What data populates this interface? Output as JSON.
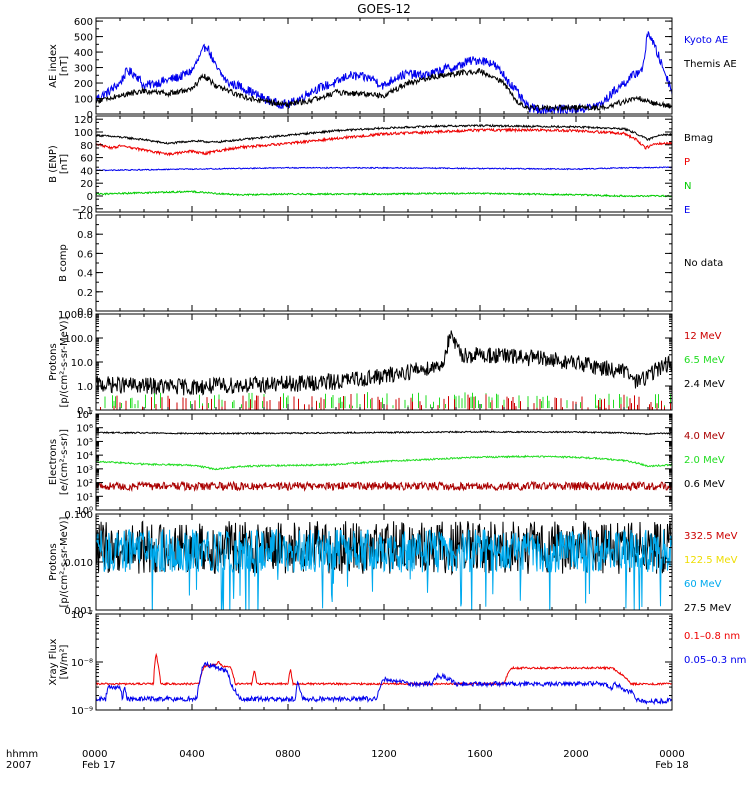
{
  "title": "GOES-12",
  "time_axis": {
    "row1_label": "hhmm",
    "row2_label": "2007",
    "ticks": [
      {
        "t": 0,
        "label": "0000",
        "sub": "Feb 17"
      },
      {
        "t": 4,
        "label": "0400",
        "sub": ""
      },
      {
        "t": 8,
        "label": "0800",
        "sub": ""
      },
      {
        "t": 12,
        "label": "1200",
        "sub": ""
      },
      {
        "t": 16,
        "label": "1600",
        "sub": ""
      },
      {
        "t": 20,
        "label": "2000",
        "sub": ""
      },
      {
        "t": 24,
        "label": "0000",
        "sub": "Feb 18"
      }
    ],
    "range_hours": [
      0,
      24
    ]
  },
  "chart_data": [
    {
      "type": "line",
      "ylabel": [
        "AE index",
        "[nT]"
      ],
      "ylim": [
        0,
        620
      ],
      "yticks": [
        0,
        100,
        200,
        300,
        400,
        500,
        600
      ],
      "ytick_labels": [
        "0",
        "100",
        "200",
        "300",
        "400",
        "500",
        "600"
      ],
      "legend": [
        {
          "label": "Kyoto AE",
          "color": "#0000ee"
        },
        {
          "label": "Themis AE",
          "color": "#000000"
        }
      ],
      "series": [
        {
          "name": "Kyoto AE",
          "color": "#0000ee",
          "noise": 30,
          "x": [
            0,
            0.5,
            1,
            1.3,
            1.7,
            2,
            2.5,
            3,
            3.5,
            4,
            4.3,
            4.6,
            5,
            5.5,
            6,
            6.5,
            7,
            7.5,
            8,
            8.5,
            9,
            9.5,
            10,
            10.5,
            11,
            11.5,
            12,
            12.5,
            13,
            13.5,
            14,
            14.5,
            15,
            15.5,
            16,
            16.5,
            17,
            17.5,
            18,
            18.5,
            19,
            19.5,
            20,
            20.5,
            21,
            21.3,
            21.6,
            22,
            22.4,
            22.8,
            23,
            23.5,
            24
          ],
          "y": [
            100,
            140,
            200,
            280,
            250,
            180,
            200,
            220,
            240,
            280,
            360,
            450,
            300,
            200,
            180,
            140,
            100,
            70,
            60,
            100,
            150,
            180,
            200,
            250,
            240,
            230,
            180,
            240,
            260,
            250,
            260,
            290,
            300,
            340,
            350,
            330,
            250,
            150,
            40,
            30,
            30,
            30,
            30,
            40,
            60,
            100,
            150,
            200,
            250,
            300,
            540,
            350,
            150
          ]
        },
        {
          "name": "Themis AE",
          "color": "#000000",
          "noise": 18,
          "x": [
            0,
            1,
            2,
            3,
            4,
            4.5,
            5,
            6,
            7,
            8,
            9,
            10,
            11,
            12,
            13,
            14,
            15,
            16,
            17,
            17.5,
            18,
            19,
            20,
            21,
            22,
            22.5,
            23,
            23.5,
            24
          ],
          "y": [
            80,
            120,
            150,
            130,
            160,
            250,
            180,
            120,
            80,
            60,
            90,
            140,
            130,
            120,
            200,
            240,
            260,
            280,
            200,
            80,
            40,
            40,
            40,
            40,
            80,
            110,
            80,
            60,
            50
          ]
        }
      ]
    },
    {
      "type": "line",
      "ylabel": [
        "B (ENP)",
        "[nT]"
      ],
      "ylim": [
        -25,
        125
      ],
      "yticks": [
        -20,
        0,
        20,
        40,
        60,
        80,
        100,
        120
      ],
      "ytick_labels": [
        "−20",
        "0",
        "20",
        "40",
        "60",
        "80",
        "100",
        "120"
      ],
      "legend": [
        {
          "label": "Bmag",
          "color": "#000000"
        },
        {
          "label": "P",
          "color": "#ee0000"
        },
        {
          "label": "N",
          "color": "#00cc00"
        },
        {
          "label": "E",
          "color": "#0000ee"
        }
      ],
      "series": [
        {
          "name": "Bmag",
          "color": "#000000",
          "noise": 1.5,
          "x": [
            0,
            1,
            2,
            3,
            4,
            5,
            6,
            8,
            10,
            12,
            14,
            16,
            18,
            20,
            22,
            22.5,
            23,
            23.5,
            24
          ],
          "y": [
            95,
            92,
            88,
            82,
            86,
            84,
            88,
            95,
            102,
            106,
            109,
            110,
            109,
            108,
            105,
            98,
            88,
            96,
            96
          ]
        },
        {
          "name": "P",
          "color": "#ee0000",
          "noise": 2,
          "x": [
            0,
            0.6,
            1,
            2,
            3,
            4,
            4.5,
            5,
            6,
            8,
            10,
            12,
            14,
            16,
            18,
            20,
            22,
            22.5,
            22.9,
            23.3,
            24
          ],
          "y": [
            82,
            75,
            78,
            72,
            65,
            70,
            66,
            70,
            76,
            82,
            90,
            97,
            100,
            103,
            103,
            102,
            98,
            88,
            75,
            82,
            82
          ]
        },
        {
          "name": "N",
          "color": "#00cc00",
          "noise": 1.2,
          "x": [
            0,
            2,
            4,
            5,
            6,
            8,
            10,
            12,
            14,
            16,
            18,
            20,
            22,
            24
          ],
          "y": [
            3,
            5,
            7,
            4,
            2,
            3,
            3,
            3,
            4,
            4,
            3,
            2,
            0,
            0
          ]
        },
        {
          "name": "E",
          "color": "#0000ee",
          "noise": 0.8,
          "x": [
            0,
            4,
            8,
            12,
            16,
            20,
            22,
            24
          ],
          "y": [
            40,
            42,
            44,
            44,
            43,
            42,
            44,
            45
          ]
        }
      ]
    },
    {
      "type": "line",
      "ylabel": [
        "B comp"
      ],
      "ylim": [
        0,
        1
      ],
      "yticks": [
        0,
        0.2,
        0.4,
        0.6,
        0.8,
        1.0
      ],
      "ytick_labels": [
        "0.0",
        "0.2",
        "0.4",
        "0.6",
        "0.8",
        "1.0"
      ],
      "minor_step": 0.1,
      "legend": [
        {
          "label": "No data",
          "color": "#000000"
        }
      ],
      "series": []
    },
    {
      "type": "line",
      "log": true,
      "ylabel": [
        "Protons",
        "[p/(cm²-s-sr-MeV)]"
      ],
      "ylim": [
        0.1,
        1000
      ],
      "yticks": [
        0.1,
        1,
        10,
        100,
        1000
      ],
      "ytick_labels": [
        "0.1",
        "1.0",
        "10.0",
        "100.0",
        "1000.0"
      ],
      "legend": [
        {
          "label": "12 MeV",
          "color": "#cc0000"
        },
        {
          "label": "6.5 MeV",
          "color": "#22dd22"
        },
        {
          "label": "2.4 MeV",
          "color": "#000000"
        }
      ],
      "series": [
        {
          "name": "2.4 MeV",
          "color": "#000000",
          "noise": 0.35,
          "x": [
            0,
            2,
            4,
            6,
            8,
            10,
            12,
            13,
            14,
            14.5,
            14.8,
            15.1,
            15.5,
            16,
            18,
            20,
            21,
            22,
            22.5,
            23,
            23.5,
            24
          ],
          "y": [
            1.2,
            1,
            0.9,
            1.1,
            1.2,
            1.5,
            2.5,
            4,
            6,
            9,
            100,
            25,
            18,
            20,
            15,
            9,
            6,
            4,
            1.5,
            2.5,
            6,
            9
          ]
        },
        {
          "name": "6.5 MeV",
          "color": "#22dd22",
          "spiky": true,
          "noise": 0,
          "x": [
            0,
            24
          ],
          "y": [
            0.12,
            0.12
          ]
        },
        {
          "name": "12 MeV",
          "color": "#cc0000",
          "spiky": true,
          "noise": 0,
          "x": [
            0,
            24
          ],
          "y": [
            0.1,
            0.1
          ]
        }
      ]
    },
    {
      "type": "line",
      "log": true,
      "ylabel": [
        "Electrons",
        "[e/(cm²-s-sr)]"
      ],
      "ylim": [
        1,
        10000000
      ],
      "yticks": [
        1,
        10,
        100,
        1000,
        10000,
        100000,
        1000000,
        10000000
      ],
      "ytick_labels": [
        "10⁰",
        "10¹",
        "10²",
        "10³",
        "10⁴",
        "10⁵",
        "10⁶",
        "10⁷"
      ],
      "legend": [
        {
          "label": "4.0 MeV",
          "color": "#aa0000"
        },
        {
          "label": "2.0 MeV",
          "color": "#22dd22"
        },
        {
          "label": "0.6 MeV",
          "color": "#000000"
        }
      ],
      "series": [
        {
          "name": "0.6 MeV",
          "color": "#000000",
          "noise": 0.05,
          "x": [
            0,
            4,
            8,
            12,
            16,
            20,
            22,
            23,
            24
          ],
          "y": [
            450000,
            380000,
            400000,
            450000,
            500000,
            480000,
            420000,
            350000,
            400000
          ]
        },
        {
          "name": "2.0 MeV",
          "color": "#22dd22",
          "noise": 0.06,
          "x": [
            0,
            1,
            2,
            4,
            5,
            6,
            8,
            10,
            12,
            14,
            16,
            18,
            20,
            22,
            23,
            24
          ],
          "y": [
            3500,
            2800,
            2200,
            1800,
            900,
            1500,
            1800,
            2000,
            3500,
            5000,
            7000,
            8000,
            7000,
            4000,
            1500,
            2000
          ]
        },
        {
          "name": "4.0 MeV",
          "color": "#aa0000",
          "noise": 0.3,
          "x": [
            0,
            24
          ],
          "y": [
            55,
            55
          ]
        }
      ]
    },
    {
      "type": "line",
      "log": true,
      "ylabel": [
        "Protons",
        "[p/(cm²-s-sr-MeV)]"
      ],
      "ylim": [
        0.001,
        0.1
      ],
      "yticks": [
        0.001,
        0.01,
        0.1
      ],
      "ytick_labels": [
        "0.001",
        "0.010",
        "0.100"
      ],
      "legend": [
        {
          "label": "332.5 MeV",
          "color": "#cc0000"
        },
        {
          "label": "122.5 MeV",
          "color": "#eedd00"
        },
        {
          "label": "60 MeV",
          "color": "#00aaee"
        },
        {
          "label": "27.5 MeV",
          "color": "#000000"
        }
      ],
      "series": [
        {
          "name": "27.5 MeV",
          "color": "#000000",
          "noise": 0.55,
          "x": [
            0,
            24
          ],
          "y": [
            0.02,
            0.02
          ]
        },
        {
          "name": "60 MeV",
          "color": "#00aaee",
          "noise": 0.45,
          "dips": true,
          "x": [
            0,
            24
          ],
          "y": [
            0.017,
            0.017
          ]
        }
      ]
    },
    {
      "type": "line",
      "log": true,
      "ylabel": [
        "Xray Flux",
        "[W/m²]"
      ],
      "ylim": [
        1e-09,
        1e-07
      ],
      "yticks": [
        1e-09,
        1e-08,
        1e-07
      ],
      "ytick_labels": [
        "10⁻⁹",
        "10⁻⁸",
        "10⁻⁷"
      ],
      "legend": [
        {
          "label": "0.1–0.8 nm",
          "color": "#ee0000"
        },
        {
          "label": "0.05–0.3 nm",
          "color": "#0000ee"
        }
      ],
      "series": [
        {
          "name": "0.1–0.8 nm",
          "color": "#ee0000",
          "noise": 0.02,
          "x": [
            0,
            2.4,
            2.5,
            2.6,
            2.7,
            3,
            4.3,
            4.5,
            5,
            5.1,
            5.3,
            5.6,
            5.8,
            6.5,
            6.6,
            6.7,
            8,
            8.1,
            8.2,
            8.3,
            12,
            17,
            17.3,
            18,
            20,
            21.5,
            22.3,
            24
          ],
          "y": [
            3.5e-09,
            3.5e-09,
            1.5e-08,
            8e-09,
            3.5e-09,
            3.5e-09,
            3.5e-09,
            8e-09,
            9e-09,
            1e-08,
            8e-09,
            8e-09,
            3.5e-09,
            3.5e-09,
            7e-09,
            3.5e-09,
            3.5e-09,
            7e-09,
            3.5e-09,
            3.5e-09,
            3.5e-09,
            3.5e-09,
            7.5e-09,
            7.5e-09,
            7.5e-09,
            7.5e-09,
            3.5e-09,
            3.5e-09
          ]
        },
        {
          "name": "0.05–0.3 nm",
          "color": "#0000ee",
          "noise": 0.05,
          "x": [
            0,
            0.4,
            0.5,
            1,
            1.1,
            1.2,
            1.3,
            4.2,
            4.3,
            4.5,
            5,
            5.5,
            5.6,
            6,
            8.3,
            8.4,
            8.6,
            11.7,
            11.9,
            12,
            12.5,
            13,
            13,
            14,
            14.2,
            14.5,
            15,
            15.3,
            21.2,
            21.5,
            21.6,
            22,
            22.4,
            22.5,
            23,
            24
          ],
          "y": [
            1.7e-09,
            1.7e-09,
            3e-09,
            3e-09,
            1.7e-09,
            3e-09,
            1.7e-09,
            1.7e-09,
            3.5e-09,
            9e-09,
            8e-09,
            6e-09,
            3.5e-09,
            1.7e-09,
            1.7e-09,
            3.5e-09,
            1.7e-09,
            1.7e-09,
            3.5e-09,
            4.5e-09,
            4e-09,
            4e-09,
            3.5e-09,
            3.5e-09,
            5e-09,
            5e-09,
            3.5e-09,
            3.5e-09,
            3.5e-09,
            2.8e-09,
            3.5e-09,
            2.7e-09,
            2.2e-09,
            1.7e-09,
            1.5e-09,
            1.6e-09
          ]
        }
      ]
    }
  ]
}
